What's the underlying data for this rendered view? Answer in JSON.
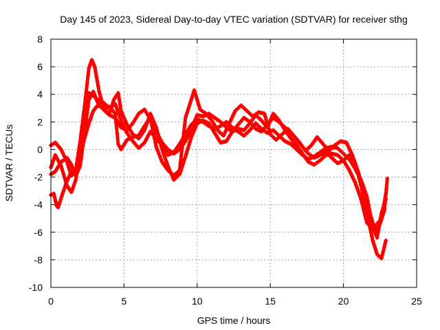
{
  "chart_data": {
    "type": "scatter",
    "title": "Day 145 of 2023, Sidereal Day-to-day VTEC variation (SDTVAR) for receiver sthg",
    "xlabel": "GPS time / hours",
    "ylabel": "SDTVAR / TECUs",
    "xlim": [
      0,
      25
    ],
    "ylim": [
      -10,
      8
    ],
    "xticks": [
      0,
      5,
      10,
      15,
      20,
      25
    ],
    "yticks": [
      -10,
      -8,
      -6,
      -4,
      -2,
      0,
      2,
      4,
      6,
      8
    ],
    "grid": true,
    "marker": "+",
    "color": "#ff0000",
    "series": [
      {
        "name": "trace-1",
        "points": [
          [
            0.0,
            -1.3
          ],
          [
            0.3,
            -0.4
          ],
          [
            0.7,
            -1.2
          ],
          [
            1.1,
            -2.6
          ],
          [
            1.4,
            -3.1
          ],
          [
            1.7,
            -2.2
          ],
          [
            2.0,
            0.0
          ],
          [
            2.3,
            2.2
          ],
          [
            2.6,
            4.1
          ],
          [
            2.9,
            3.9
          ],
          [
            3.2,
            3.6
          ],
          [
            3.6,
            3.4
          ],
          [
            4.0,
            3.0
          ],
          [
            4.4,
            3.3
          ],
          [
            4.8,
            2.1
          ],
          [
            5.2,
            1.2
          ],
          [
            5.6,
            0.6
          ],
          [
            6.0,
            0.1
          ],
          [
            6.4,
            0.5
          ],
          [
            6.8,
            1.3
          ],
          [
            7.2,
            0.8
          ],
          [
            7.6,
            0.3
          ],
          [
            8.0,
            -0.4
          ],
          [
            8.4,
            -0.2
          ],
          [
            8.8,
            0.4
          ],
          [
            9.2,
            1.1
          ],
          [
            9.6,
            1.8
          ],
          [
            10.0,
            2.2
          ],
          [
            10.4,
            2.0
          ],
          [
            10.8,
            1.7
          ],
          [
            11.2,
            1.5
          ],
          [
            11.6,
            1.7
          ],
          [
            12.0,
            2.0
          ],
          [
            12.4,
            1.6
          ],
          [
            12.8,
            1.3
          ],
          [
            13.2,
            1.0
          ],
          [
            13.6,
            1.4
          ],
          [
            14.0,
            1.9
          ],
          [
            14.4,
            1.5
          ],
          [
            14.8,
            1.2
          ],
          [
            15.2,
            1.4
          ],
          [
            15.6,
            1.0
          ],
          [
            16.0,
            0.6
          ],
          [
            16.4,
            0.4
          ],
          [
            16.8,
            0.0
          ],
          [
            17.2,
            -0.4
          ],
          [
            17.6,
            -0.7
          ],
          [
            18.0,
            -0.5
          ],
          [
            18.4,
            -0.2
          ],
          [
            18.8,
            0.1
          ],
          [
            19.2,
            0.2
          ],
          [
            19.6,
            0.1
          ],
          [
            20.0,
            -0.3
          ],
          [
            20.4,
            -0.7
          ],
          [
            20.8,
            -1.4
          ],
          [
            21.2,
            -2.2
          ],
          [
            21.6,
            -3.4
          ],
          [
            22.0,
            -5.6
          ],
          [
            22.3,
            -6.4
          ],
          [
            22.6,
            -4.6
          ],
          [
            22.9,
            -3.6
          ]
        ]
      },
      {
        "name": "trace-2",
        "points": [
          [
            0.0,
            -1.8
          ],
          [
            0.3,
            -1.6
          ],
          [
            0.7,
            -0.9
          ],
          [
            1.1,
            -0.6
          ],
          [
            1.4,
            -1.1
          ],
          [
            1.7,
            -1.9
          ],
          [
            2.0,
            -1.2
          ],
          [
            2.3,
            1.2
          ],
          [
            2.6,
            3.6
          ],
          [
            2.9,
            4.2
          ],
          [
            3.2,
            3.4
          ],
          [
            3.6,
            2.9
          ],
          [
            4.0,
            2.5
          ],
          [
            4.4,
            2.3
          ],
          [
            4.8,
            1.6
          ],
          [
            5.2,
            1.4
          ],
          [
            5.6,
            1.9
          ],
          [
            6.0,
            2.6
          ],
          [
            6.4,
            2.9
          ],
          [
            6.8,
            2.2
          ],
          [
            7.2,
            1.3
          ],
          [
            7.6,
            0.5
          ],
          [
            8.0,
            0.0
          ],
          [
            8.4,
            -0.3
          ],
          [
            8.8,
            0.0
          ],
          [
            9.2,
            0.6
          ],
          [
            9.6,
            1.5
          ],
          [
            10.0,
            2.5
          ],
          [
            10.4,
            2.4
          ],
          [
            10.8,
            2.6
          ],
          [
            11.2,
            2.3
          ],
          [
            11.6,
            2.0
          ],
          [
            12.0,
            1.6
          ],
          [
            12.4,
            1.3
          ],
          [
            12.8,
            1.8
          ],
          [
            13.2,
            2.3
          ],
          [
            13.6,
            2.0
          ],
          [
            14.0,
            1.5
          ],
          [
            14.4,
            1.3
          ],
          [
            14.8,
            1.8
          ],
          [
            15.2,
            2.3
          ],
          [
            15.6,
            2.0
          ],
          [
            16.0,
            1.6
          ],
          [
            16.4,
            1.2
          ],
          [
            16.8,
            0.7
          ],
          [
            17.2,
            0.2
          ],
          [
            17.6,
            -0.3
          ],
          [
            18.0,
            -0.6
          ],
          [
            18.4,
            -0.4
          ],
          [
            18.8,
            -0.2
          ],
          [
            19.2,
            -0.6
          ],
          [
            19.6,
            -1.0
          ],
          [
            20.0,
            -0.8
          ],
          [
            20.4,
            -0.4
          ],
          [
            20.8,
            -1.0
          ],
          [
            21.2,
            -2.6
          ],
          [
            21.6,
            -4.6
          ],
          [
            22.0,
            -6.6
          ],
          [
            22.3,
            -7.6
          ],
          [
            22.6,
            -7.9
          ],
          [
            22.9,
            -6.6
          ]
        ]
      },
      {
        "name": "trace-3",
        "points": [
          [
            0.0,
            0.3
          ],
          [
            0.3,
            0.5
          ],
          [
            0.7,
            0.0
          ],
          [
            1.1,
            -0.9
          ],
          [
            1.4,
            -1.9
          ],
          [
            1.7,
            -1.5
          ],
          [
            2.0,
            0.6
          ],
          [
            2.3,
            3.1
          ],
          [
            2.6,
            5.9
          ],
          [
            2.8,
            6.5
          ],
          [
            3.0,
            6.0
          ],
          [
            3.3,
            4.2
          ],
          [
            3.6,
            3.0
          ],
          [
            4.0,
            2.6
          ],
          [
            4.3,
            3.6
          ],
          [
            4.6,
            4.1
          ],
          [
            4.8,
            2.8
          ],
          [
            5.2,
            1.8
          ],
          [
            5.6,
            1.1
          ],
          [
            6.0,
            0.8
          ],
          [
            6.4,
            1.4
          ],
          [
            6.8,
            2.6
          ],
          [
            7.2,
            1.6
          ],
          [
            7.6,
            0.0
          ],
          [
            8.0,
            -1.2
          ],
          [
            8.4,
            -2.2
          ],
          [
            8.8,
            -1.8
          ],
          [
            9.2,
            -0.5
          ],
          [
            9.6,
            0.9
          ],
          [
            10.0,
            1.9
          ],
          [
            10.4,
            2.1
          ],
          [
            10.8,
            1.9
          ],
          [
            11.2,
            1.2
          ],
          [
            11.6,
            0.5
          ],
          [
            12.0,
            0.6
          ],
          [
            12.4,
            1.3
          ],
          [
            12.8,
            1.5
          ],
          [
            13.2,
            1.4
          ],
          [
            13.6,
            1.9
          ],
          [
            14.0,
            2.5
          ],
          [
            14.4,
            2.1
          ],
          [
            14.8,
            1.6
          ],
          [
            15.2,
            2.6
          ],
          [
            15.6,
            2.1
          ],
          [
            16.0,
            1.4
          ],
          [
            16.4,
            0.8
          ],
          [
            16.8,
            0.3
          ],
          [
            17.2,
            -0.3
          ],
          [
            17.6,
            -0.9
          ],
          [
            18.0,
            -1.1
          ],
          [
            18.4,
            -0.8
          ],
          [
            18.8,
            -0.4
          ],
          [
            19.2,
            -0.3
          ],
          [
            19.6,
            -0.4
          ],
          [
            20.0,
            -0.8
          ],
          [
            20.4,
            -1.5
          ],
          [
            20.8,
            -2.4
          ],
          [
            21.2,
            -3.6
          ],
          [
            21.6,
            -5.3
          ],
          [
            22.0,
            -5.8
          ],
          [
            22.3,
            -5.4
          ],
          [
            22.6,
            -5.0
          ],
          [
            22.9,
            -3.2
          ]
        ]
      },
      {
        "name": "trace-4",
        "points": [
          [
            0.0,
            -3.3
          ],
          [
            0.2,
            -3.2
          ],
          [
            0.4,
            -4.1
          ],
          [
            0.5,
            -4.2
          ],
          [
            0.8,
            -3.2
          ],
          [
            1.1,
            -2.3
          ],
          [
            1.4,
            -1.6
          ],
          [
            1.7,
            -1.9
          ],
          [
            2.0,
            -0.4
          ],
          [
            2.3,
            0.8
          ],
          [
            2.6,
            1.9
          ],
          [
            2.9,
            2.8
          ],
          [
            3.2,
            3.2
          ],
          [
            3.6,
            3.0
          ],
          [
            4.0,
            3.1
          ],
          [
            4.4,
            2.6
          ],
          [
            4.6,
            0.4
          ],
          [
            4.8,
            0.0
          ],
          [
            5.2,
            0.7
          ],
          [
            5.6,
            0.9
          ],
          [
            6.0,
            1.0
          ],
          [
            6.4,
            1.7
          ],
          [
            6.8,
            2.3
          ],
          [
            7.2,
            0.2
          ],
          [
            7.6,
            -0.9
          ],
          [
            8.0,
            -1.5
          ],
          [
            8.4,
            -1.9
          ],
          [
            8.8,
            -1.5
          ],
          [
            9.2,
            2.3
          ],
          [
            9.5,
            3.3
          ],
          [
            9.8,
            4.3
          ],
          [
            10.2,
            2.9
          ],
          [
            10.6,
            2.6
          ],
          [
            11.0,
            2.1
          ],
          [
            11.4,
            1.4
          ],
          [
            11.8,
            1.0
          ],
          [
            12.2,
            1.9
          ],
          [
            12.6,
            2.8
          ],
          [
            13.0,
            3.2
          ],
          [
            13.4,
            2.8
          ],
          [
            13.8,
            2.4
          ],
          [
            14.2,
            2.7
          ],
          [
            14.6,
            2.6
          ],
          [
            15.0,
            1.1
          ],
          [
            15.4,
            0.7
          ],
          [
            15.8,
            1.1
          ],
          [
            16.2,
            1.5
          ],
          [
            16.6,
            1.0
          ],
          [
            17.0,
            0.5
          ],
          [
            17.4,
            -0.1
          ],
          [
            17.8,
            0.3
          ],
          [
            18.2,
            0.9
          ],
          [
            18.6,
            0.4
          ],
          [
            19.0,
            -0.1
          ],
          [
            19.4,
            0.3
          ],
          [
            19.8,
            0.6
          ],
          [
            20.2,
            0.5
          ],
          [
            20.6,
            -0.4
          ],
          [
            21.0,
            -1.6
          ],
          [
            21.4,
            -3.1
          ],
          [
            21.8,
            -4.6
          ],
          [
            22.2,
            -6.0
          ],
          [
            22.5,
            -5.4
          ],
          [
            22.8,
            -4.4
          ],
          [
            23.0,
            -2.1
          ]
        ]
      }
    ]
  }
}
